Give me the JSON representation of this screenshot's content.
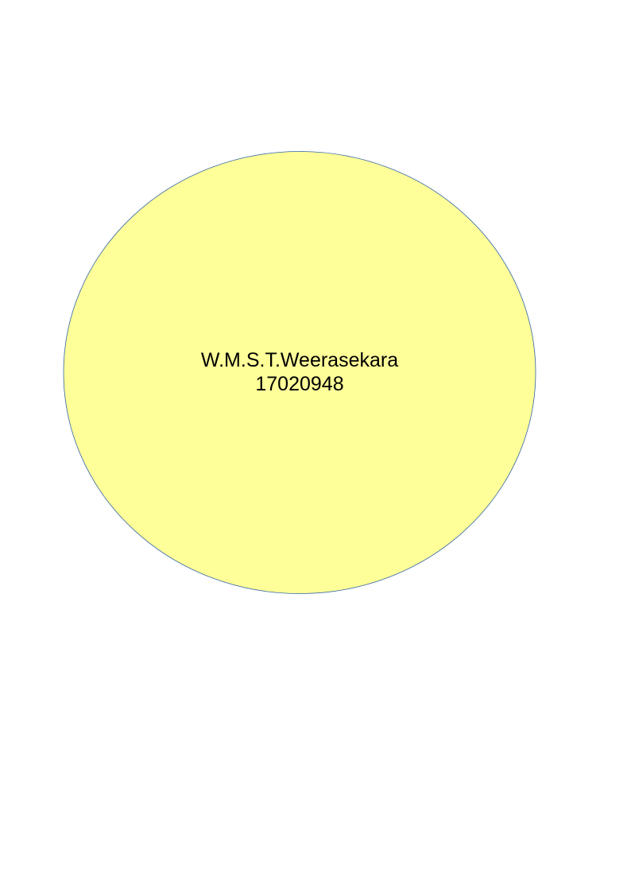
{
  "shape": {
    "fill_color": "#ffff99",
    "stroke_color": "#3465a4",
    "text_lines": {
      "name": "W.M.S.T.Weerasekara",
      "id_number": "17020948"
    }
  }
}
